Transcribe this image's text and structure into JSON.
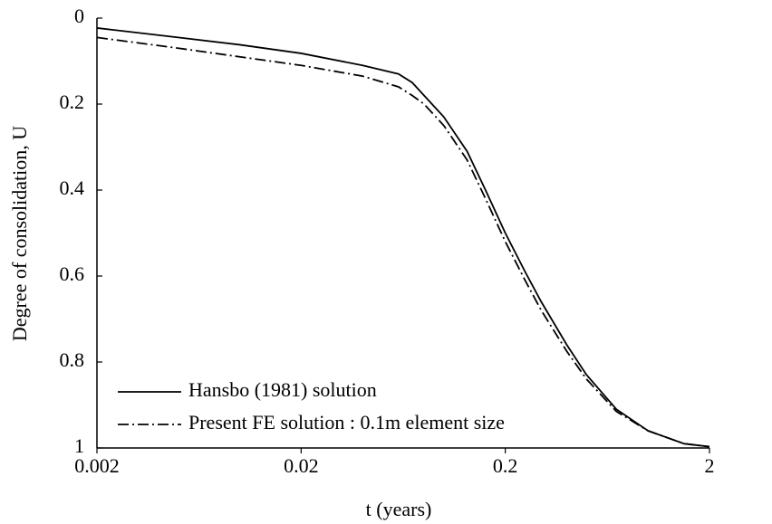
{
  "chart_data": {
    "type": "line",
    "xlabel": "t (years)",
    "ylabel": "Degree of consolidation, U",
    "x": [
      0.002,
      0.005,
      0.01,
      0.02,
      0.04,
      0.06,
      0.07,
      0.08,
      0.1,
      0.13,
      0.16,
      0.2,
      0.25,
      0.3,
      0.4,
      0.5,
      0.7,
      1,
      1.5,
      2
    ],
    "series": [
      {
        "name": "Hansbo (1981) solution",
        "color": "#000000",
        "dash": "solid",
        "values": [
          0.023,
          0.045,
          0.062,
          0.082,
          0.11,
          0.13,
          0.15,
          0.18,
          0.23,
          0.31,
          0.4,
          0.5,
          0.59,
          0.66,
          0.76,
          0.83,
          0.91,
          0.96,
          0.99,
          0.997
        ]
      },
      {
        "name": "Present FE solution : 0.1m element size",
        "color": "#000000",
        "dash": "dashdot",
        "values": [
          0.045,
          0.07,
          0.09,
          0.11,
          0.135,
          0.16,
          0.18,
          0.2,
          0.25,
          0.33,
          0.42,
          0.52,
          0.61,
          0.68,
          0.775,
          0.84,
          0.915,
          0.96,
          0.99,
          0.997
        ]
      }
    ],
    "xscale": "log",
    "xlim": [
      0.002,
      2
    ],
    "xticks": [
      0.002,
      0.02,
      0.2,
      2
    ],
    "ylim": [
      0,
      1
    ],
    "yticks": [
      0,
      0.2,
      0.4,
      0.6,
      0.8,
      1
    ],
    "y_inverted": true,
    "grid": false,
    "legend": "lower left"
  }
}
